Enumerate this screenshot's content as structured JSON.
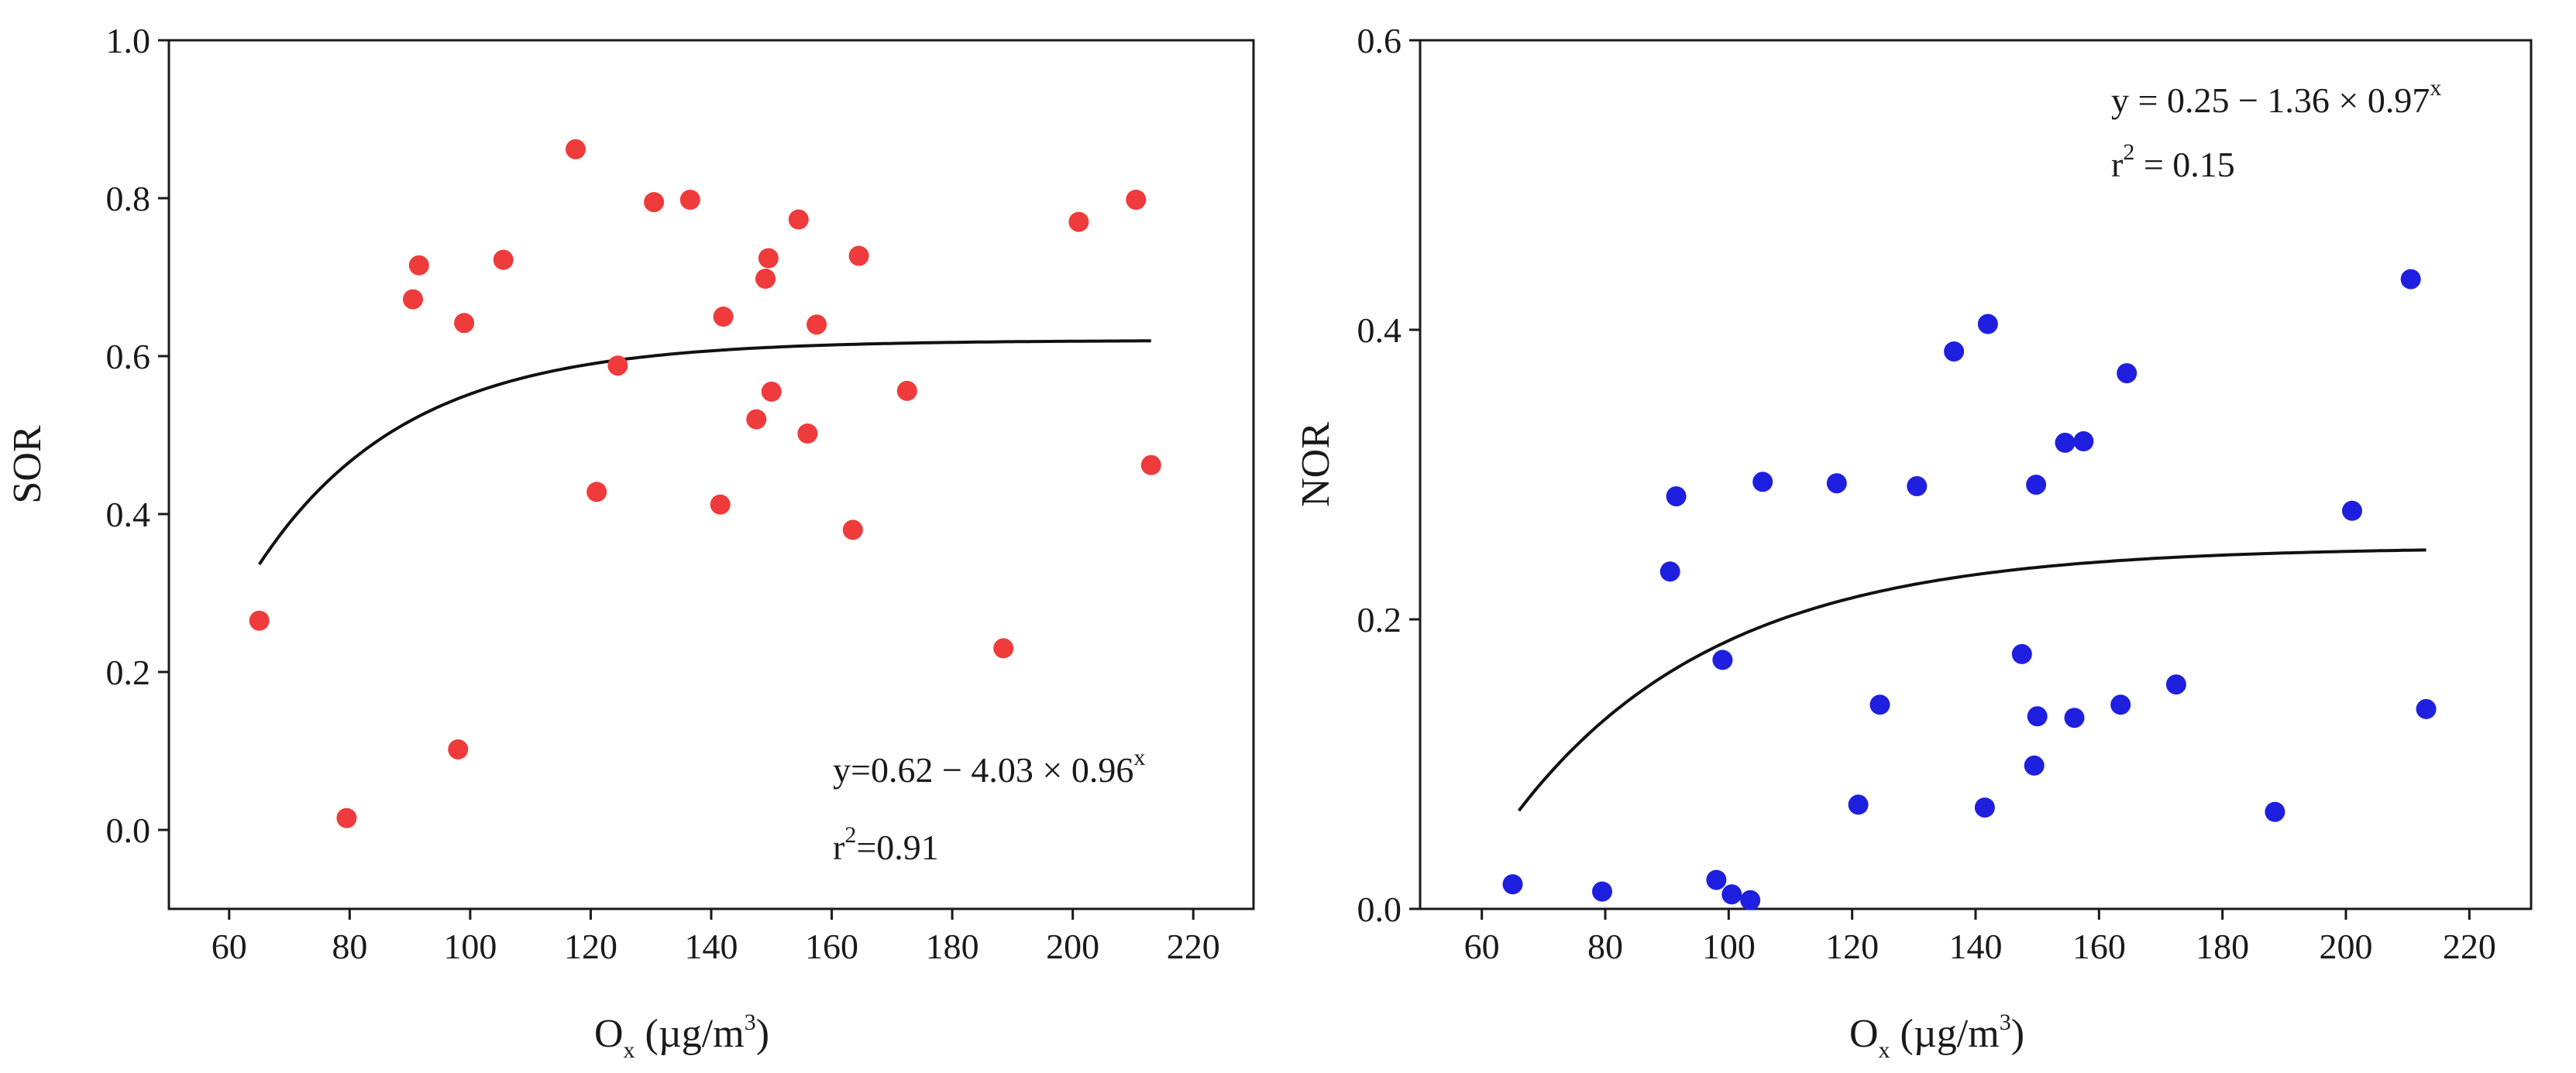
{
  "chart_data": [
    {
      "type": "scatter",
      "id": "sor",
      "ylabel": "SOR",
      "xlabel": {
        "base": "O",
        "sub": "x",
        "unit": " (µg/m",
        "sup": "3",
        "close": ")"
      },
      "xlim": [
        50,
        230
      ],
      "ylim": [
        -0.1,
        1.0
      ],
      "xticks": [
        60,
        80,
        100,
        120,
        140,
        160,
        180,
        200,
        220
      ],
      "yticks": [
        0.0,
        0.2,
        0.4,
        0.6,
        0.8,
        1.0
      ],
      "ytick_labels": [
        "0.0",
        "0.2",
        "0.4",
        "0.6",
        "0.8",
        "1.0"
      ],
      "marker_color": "#ef3b3b",
      "points": [
        [
          65,
          0.265
        ],
        [
          79.5,
          0.015
        ],
        [
          90.5,
          0.672
        ],
        [
          91.5,
          0.715
        ],
        [
          98,
          0.102
        ],
        [
          99,
          0.642
        ],
        [
          105.5,
          0.722
        ],
        [
          117.5,
          0.862
        ],
        [
          121,
          0.428
        ],
        [
          124.5,
          0.588
        ],
        [
          130.5,
          0.795
        ],
        [
          136.5,
          0.798
        ],
        [
          141.5,
          0.412
        ],
        [
          142,
          0.65
        ],
        [
          147.5,
          0.52
        ],
        [
          149,
          0.698
        ],
        [
          149.5,
          0.724
        ],
        [
          150,
          0.555
        ],
        [
          154.5,
          0.773
        ],
        [
          156,
          0.502
        ],
        [
          157.5,
          0.64
        ],
        [
          163.5,
          0.38
        ],
        [
          164.5,
          0.727
        ],
        [
          172.5,
          0.556
        ],
        [
          188.5,
          0.23
        ],
        [
          201,
          0.77
        ],
        [
          210.5,
          0.798
        ],
        [
          213,
          0.462
        ]
      ],
      "fit": {
        "a": 0.62,
        "b": 4.03,
        "c": 0.96,
        "x_start": 65,
        "x_end": 213
      },
      "equation": {
        "text": "y=0.62 − 4.03 × 0.96",
        "sup": "x"
      },
      "r2": {
        "prefix": "r",
        "sup": "2",
        "text": "=0.91"
      }
    },
    {
      "type": "scatter",
      "id": "nor",
      "ylabel": "NOR",
      "xlabel": {
        "base": "O",
        "sub": "x",
        "unit": " (µg/m",
        "sup": "3",
        "close": ")"
      },
      "xlim": [
        50,
        230
      ],
      "ylim": [
        0.0,
        0.6
      ],
      "xticks": [
        60,
        80,
        100,
        120,
        140,
        160,
        180,
        200,
        220
      ],
      "yticks": [
        0.0,
        0.2,
        0.4,
        0.6
      ],
      "ytick_labels": [
        "0.0",
        "0.2",
        "0.4",
        "0.6"
      ],
      "marker_color": "#1f1fe0",
      "points": [
        [
          65,
          0.017
        ],
        [
          79.5,
          0.012
        ],
        [
          90.5,
          0.233
        ],
        [
          91.5,
          0.285
        ],
        [
          98,
          0.02
        ],
        [
          99,
          0.172
        ],
        [
          100.5,
          0.01
        ],
        [
          103.5,
          0.006
        ],
        [
          105.5,
          0.295
        ],
        [
          117.5,
          0.294
        ],
        [
          121,
          0.072
        ],
        [
          124.5,
          0.141
        ],
        [
          130.5,
          0.292
        ],
        [
          136.5,
          0.385
        ],
        [
          141.5,
          0.07
        ],
        [
          142,
          0.404
        ],
        [
          147.5,
          0.176
        ],
        [
          149.5,
          0.099
        ],
        [
          149.8,
          0.293
        ],
        [
          150,
          0.133
        ],
        [
          154.5,
          0.322
        ],
        [
          156,
          0.132
        ],
        [
          157.5,
          0.323
        ],
        [
          163.5,
          0.141
        ],
        [
          164.5,
          0.37
        ],
        [
          172.5,
          0.155
        ],
        [
          188.5,
          0.067
        ],
        [
          201,
          0.275
        ],
        [
          210.5,
          0.435
        ],
        [
          213,
          0.138
        ]
      ],
      "fit": {
        "a": 0.25,
        "b": 1.36,
        "c": 0.97,
        "x_start": 66,
        "x_end": 213
      },
      "equation": {
        "text": "y = 0.25 − 1.36 × 0.97",
        "sup": "x"
      },
      "r2": {
        "prefix": "r",
        "sup": "2",
        "text": " = 0.15"
      }
    }
  ]
}
